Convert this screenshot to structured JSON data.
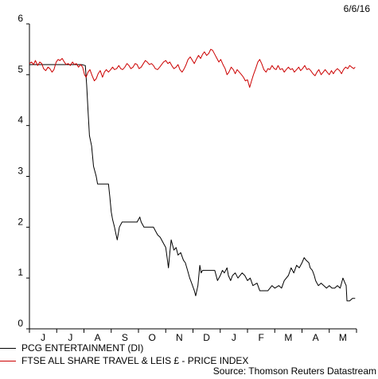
{
  "date_label": "6/6/16",
  "source": "Source: Thomson Reuters Datastream",
  "colors": {
    "pcg": "#000000",
    "ftse": "#cc0000"
  },
  "chart_data": {
    "type": "line",
    "ylim": [
      0,
      6
    ],
    "yticks": [
      0,
      1,
      2,
      3,
      4,
      5,
      6
    ],
    "ytick_labels": [
      "0",
      "1",
      "2",
      "3",
      "4",
      "5",
      "6"
    ],
    "x_months": [
      "J",
      "J",
      "A",
      "S",
      "O",
      "N",
      "D",
      "J",
      "F",
      "M",
      "A",
      "M"
    ],
    "xlim": [
      0,
      12
    ],
    "legend_position": "bottom",
    "grid": false,
    "series": [
      {
        "name": "PCG ENTERTAINMENT (DI)",
        "color": "#000000",
        "points": [
          [
            0,
            5.2
          ],
          [
            0.5,
            5.2
          ],
          [
            1,
            5.2
          ],
          [
            1.5,
            5.2
          ],
          [
            1.9,
            5.2
          ],
          [
            2.05,
            5.18
          ],
          [
            2.1,
            4.8
          ],
          [
            2.15,
            4.3
          ],
          [
            2.2,
            3.8
          ],
          [
            2.28,
            3.6
          ],
          [
            2.35,
            3.2
          ],
          [
            2.45,
            3.0
          ],
          [
            2.5,
            2.85
          ],
          [
            2.6,
            2.85
          ],
          [
            2.75,
            2.85
          ],
          [
            2.9,
            2.85
          ],
          [
            2.95,
            2.6
          ],
          [
            3.0,
            2.3
          ],
          [
            3.05,
            2.15
          ],
          [
            3.12,
            2.0
          ],
          [
            3.18,
            1.85
          ],
          [
            3.22,
            1.75
          ],
          [
            3.3,
            2.0
          ],
          [
            3.4,
            2.1
          ],
          [
            3.55,
            2.1
          ],
          [
            3.75,
            2.1
          ],
          [
            3.95,
            2.1
          ],
          [
            4.05,
            2.2
          ],
          [
            4.1,
            2.1
          ],
          [
            4.2,
            2.0
          ],
          [
            4.35,
            2.0
          ],
          [
            4.55,
            2.0
          ],
          [
            4.7,
            1.85
          ],
          [
            4.8,
            1.8
          ],
          [
            4.9,
            1.7
          ],
          [
            5.0,
            1.6
          ],
          [
            5.05,
            1.4
          ],
          [
            5.1,
            1.2
          ],
          [
            5.15,
            1.5
          ],
          [
            5.2,
            1.75
          ],
          [
            5.3,
            1.55
          ],
          [
            5.38,
            1.6
          ],
          [
            5.45,
            1.45
          ],
          [
            5.55,
            1.5
          ],
          [
            5.65,
            1.35
          ],
          [
            5.72,
            1.3
          ],
          [
            5.8,
            1.15
          ],
          [
            5.88,
            1.0
          ],
          [
            5.95,
            0.9
          ],
          [
            6.05,
            0.75
          ],
          [
            6.1,
            0.65
          ],
          [
            6.18,
            0.85
          ],
          [
            6.25,
            1.25
          ],
          [
            6.3,
            1.1
          ],
          [
            6.35,
            1.15
          ],
          [
            6.5,
            1.15
          ],
          [
            6.6,
            1.15
          ],
          [
            6.7,
            1.15
          ],
          [
            6.8,
            1.15
          ],
          [
            6.85,
            1.05
          ],
          [
            6.9,
            0.95
          ],
          [
            7.0,
            1.05
          ],
          [
            7.08,
            1.15
          ],
          [
            7.15,
            1.1
          ],
          [
            7.25,
            1.2
          ],
          [
            7.3,
            1.05
          ],
          [
            7.38,
            0.95
          ],
          [
            7.45,
            1.05
          ],
          [
            7.55,
            1.1
          ],
          [
            7.65,
            1.0
          ],
          [
            7.8,
            1.1
          ],
          [
            7.9,
            1.05
          ],
          [
            8.0,
            0.95
          ],
          [
            8.1,
            1.0
          ],
          [
            8.2,
            0.85
          ],
          [
            8.35,
            0.9
          ],
          [
            8.45,
            0.75
          ],
          [
            8.6,
            0.75
          ],
          [
            8.75,
            0.75
          ],
          [
            8.9,
            0.85
          ],
          [
            9.0,
            0.8
          ],
          [
            9.15,
            0.85
          ],
          [
            9.25,
            0.8
          ],
          [
            9.35,
            0.95
          ],
          [
            9.5,
            1.05
          ],
          [
            9.6,
            1.2
          ],
          [
            9.7,
            1.1
          ],
          [
            9.8,
            1.25
          ],
          [
            9.9,
            1.2
          ],
          [
            10.0,
            1.3
          ],
          [
            10.08,
            1.4
          ],
          [
            10.15,
            1.35
          ],
          [
            10.25,
            1.3
          ],
          [
            10.3,
            1.2
          ],
          [
            10.38,
            1.15
          ],
          [
            10.45,
            1.05
          ],
          [
            10.5,
            0.95
          ],
          [
            10.55,
            0.9
          ],
          [
            10.6,
            0.85
          ],
          [
            10.7,
            0.9
          ],
          [
            10.8,
            0.85
          ],
          [
            10.9,
            0.8
          ],
          [
            11.0,
            0.85
          ],
          [
            11.1,
            0.8
          ],
          [
            11.2,
            0.8
          ],
          [
            11.3,
            0.85
          ],
          [
            11.4,
            0.8
          ],
          [
            11.5,
            1.0
          ],
          [
            11.58,
            0.9
          ],
          [
            11.62,
            0.85
          ],
          [
            11.65,
            0.55
          ],
          [
            11.75,
            0.55
          ],
          [
            11.85,
            0.6
          ],
          [
            11.95,
            0.6
          ]
        ]
      },
      {
        "name": "FTSE ALL SHARE TRAVEL & LEIS £ - PRICE INDEX",
        "color": "#cc0000",
        "points": [
          [
            0,
            5.22
          ],
          [
            0.08,
            5.25
          ],
          [
            0.15,
            5.2
          ],
          [
            0.22,
            5.28
          ],
          [
            0.3,
            5.18
          ],
          [
            0.38,
            5.25
          ],
          [
            0.45,
            5.22
          ],
          [
            0.52,
            5.12
          ],
          [
            0.6,
            5.08
          ],
          [
            0.68,
            5.15
          ],
          [
            0.75,
            5.12
          ],
          [
            0.83,
            5.05
          ],
          [
            0.9,
            5.1
          ],
          [
            0.98,
            5.25
          ],
          [
            1.05,
            5.3
          ],
          [
            1.12,
            5.28
          ],
          [
            1.2,
            5.32
          ],
          [
            1.28,
            5.25
          ],
          [
            1.35,
            5.2
          ],
          [
            1.42,
            5.22
          ],
          [
            1.5,
            5.18
          ],
          [
            1.58,
            5.25
          ],
          [
            1.65,
            5.2
          ],
          [
            1.72,
            5.22
          ],
          [
            1.8,
            5.15
          ],
          [
            1.88,
            5.2
          ],
          [
            1.95,
            5.15
          ],
          [
            2.02,
            5.0
          ],
          [
            2.08,
            4.95
          ],
          [
            2.15,
            5.05
          ],
          [
            2.22,
            5.1
          ],
          [
            2.3,
            4.98
          ],
          [
            2.38,
            4.88
          ],
          [
            2.45,
            4.92
          ],
          [
            2.52,
            5.02
          ],
          [
            2.6,
            5.08
          ],
          [
            2.68,
            4.95
          ],
          [
            2.75,
            5.05
          ],
          [
            2.82,
            5.1
          ],
          [
            2.9,
            5.05
          ],
          [
            2.98,
            5.1
          ],
          [
            3.05,
            5.15
          ],
          [
            3.12,
            5.1
          ],
          [
            3.2,
            5.12
          ],
          [
            3.28,
            5.18
          ],
          [
            3.35,
            5.12
          ],
          [
            3.42,
            5.1
          ],
          [
            3.5,
            5.15
          ],
          [
            3.58,
            5.22
          ],
          [
            3.65,
            5.18
          ],
          [
            3.72,
            5.12
          ],
          [
            3.8,
            5.15
          ],
          [
            3.88,
            5.22
          ],
          [
            3.95,
            5.2
          ],
          [
            4.02,
            5.12
          ],
          [
            4.1,
            5.15
          ],
          [
            4.18,
            5.22
          ],
          [
            4.25,
            5.28
          ],
          [
            4.32,
            5.25
          ],
          [
            4.4,
            5.2
          ],
          [
            4.48,
            5.22
          ],
          [
            4.55,
            5.18
          ],
          [
            4.62,
            5.12
          ],
          [
            4.7,
            5.1
          ],
          [
            4.78,
            5.15
          ],
          [
            4.85,
            5.2
          ],
          [
            4.92,
            5.25
          ],
          [
            5.0,
            5.28
          ],
          [
            5.08,
            5.22
          ],
          [
            5.15,
            5.25
          ],
          [
            5.22,
            5.18
          ],
          [
            5.3,
            5.12
          ],
          [
            5.38,
            5.15
          ],
          [
            5.45,
            5.2
          ],
          [
            5.52,
            5.1
          ],
          [
            5.6,
            5.05
          ],
          [
            5.68,
            5.12
          ],
          [
            5.75,
            5.2
          ],
          [
            5.82,
            5.3
          ],
          [
            5.9,
            5.35
          ],
          [
            5.98,
            5.28
          ],
          [
            6.05,
            5.22
          ],
          [
            6.12,
            5.3
          ],
          [
            6.2,
            5.38
          ],
          [
            6.28,
            5.32
          ],
          [
            6.35,
            5.4
          ],
          [
            6.42,
            5.45
          ],
          [
            6.5,
            5.38
          ],
          [
            6.58,
            5.42
          ],
          [
            6.65,
            5.5
          ],
          [
            6.72,
            5.48
          ],
          [
            6.8,
            5.4
          ],
          [
            6.88,
            5.32
          ],
          [
            6.95,
            5.25
          ],
          [
            7.02,
            5.3
          ],
          [
            7.1,
            5.2
          ],
          [
            7.18,
            5.12
          ],
          [
            7.25,
            5.0
          ],
          [
            7.32,
            5.05
          ],
          [
            7.4,
            5.15
          ],
          [
            7.48,
            5.1
          ],
          [
            7.55,
            5.02
          ],
          [
            7.62,
            5.1
          ],
          [
            7.7,
            5.05
          ],
          [
            7.78,
            5.0
          ],
          [
            7.85,
            4.95
          ],
          [
            7.92,
            4.88
          ],
          [
            8.0,
            4.9
          ],
          [
            8.08,
            4.75
          ],
          [
            8.15,
            4.88
          ],
          [
            8.22,
            5.0
          ],
          [
            8.3,
            5.12
          ],
          [
            8.38,
            5.25
          ],
          [
            8.45,
            5.3
          ],
          [
            8.52,
            5.22
          ],
          [
            8.6,
            5.1
          ],
          [
            8.68,
            5.05
          ],
          [
            8.75,
            5.12
          ],
          [
            8.82,
            5.1
          ],
          [
            8.9,
            5.18
          ],
          [
            8.98,
            5.12
          ],
          [
            9.05,
            5.1
          ],
          [
            9.12,
            5.18
          ],
          [
            9.2,
            5.1
          ],
          [
            9.28,
            5.12
          ],
          [
            9.35,
            5.05
          ],
          [
            9.42,
            5.1
          ],
          [
            9.5,
            5.15
          ],
          [
            9.58,
            5.1
          ],
          [
            9.65,
            5.12
          ],
          [
            9.72,
            5.05
          ],
          [
            9.8,
            5.1
          ],
          [
            9.88,
            5.15
          ],
          [
            9.95,
            5.08
          ],
          [
            10.02,
            5.12
          ],
          [
            10.1,
            5.18
          ],
          [
            10.18,
            5.1
          ],
          [
            10.25,
            5.12
          ],
          [
            10.32,
            5.08
          ],
          [
            10.4,
            5.02
          ],
          [
            10.48,
            4.98
          ],
          [
            10.55,
            5.05
          ],
          [
            10.62,
            5.1
          ],
          [
            10.7,
            5.0
          ],
          [
            10.78,
            5.05
          ],
          [
            10.85,
            5.1
          ],
          [
            10.92,
            5.05
          ],
          [
            11.0,
            5.0
          ],
          [
            11.08,
            5.08
          ],
          [
            11.15,
            5.02
          ],
          [
            11.22,
            5.08
          ],
          [
            11.3,
            5.12
          ],
          [
            11.38,
            5.08
          ],
          [
            11.45,
            5.02
          ],
          [
            11.52,
            5.1
          ],
          [
            11.6,
            5.15
          ],
          [
            11.68,
            5.12
          ],
          [
            11.75,
            5.18
          ],
          [
            11.82,
            5.15
          ],
          [
            11.9,
            5.12
          ],
          [
            11.95,
            5.15
          ]
        ]
      }
    ]
  }
}
